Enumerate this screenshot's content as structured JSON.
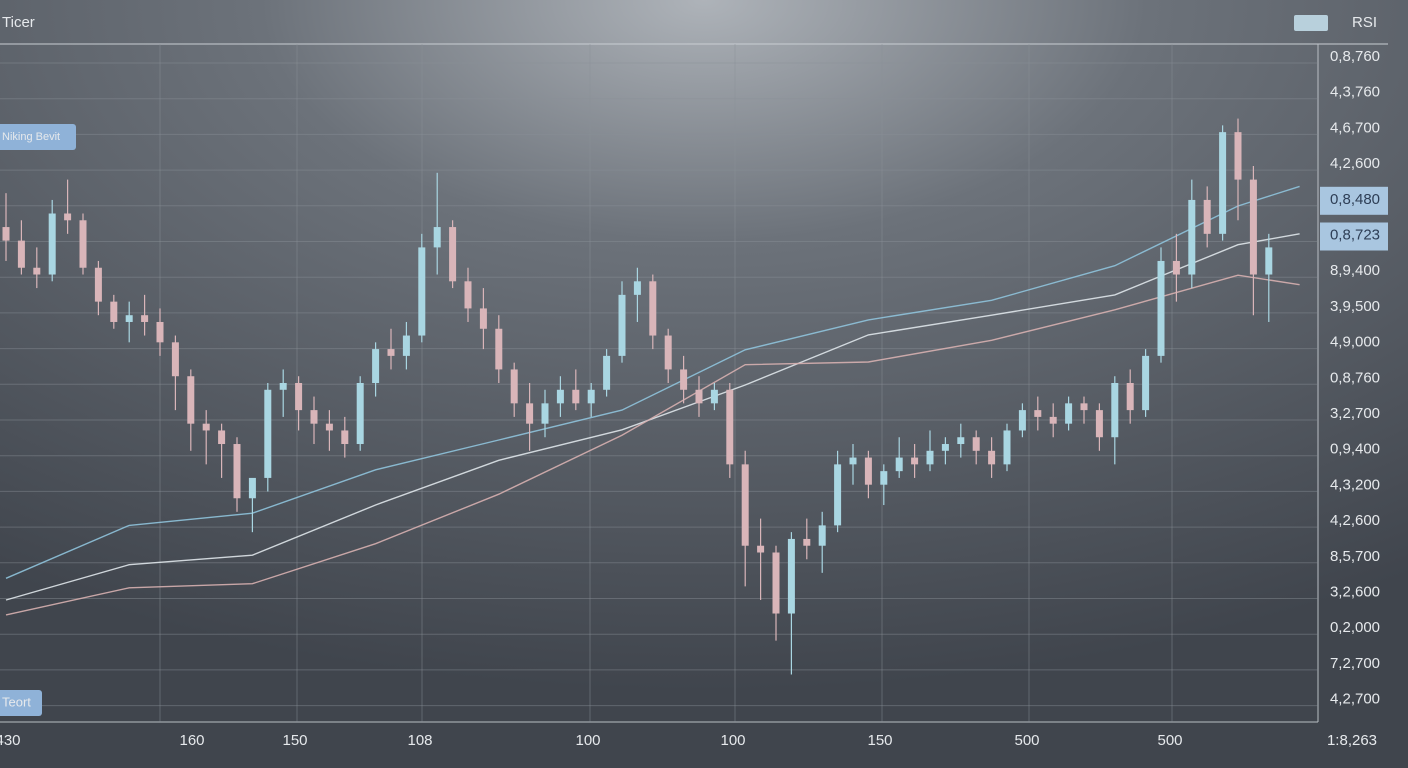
{
  "chart_data": {
    "type": "candlestick",
    "title": "Ticer",
    "legend": "RSI",
    "legend_color": "#b8d0dc",
    "label_top": "Niking Bevit",
    "label_bottom": "Teort",
    "up_color": "#a9d6e2",
    "down_color": "#d9b5b9",
    "ylim": [
      0,
      100
    ],
    "y_axis_labels": [
      "0,8,760",
      "4,3,760",
      "4,6,700",
      "4,2,600",
      "0,8,480",
      "0,8,723",
      "8,9,400",
      "3,9,500",
      "4,9,000",
      "0,8,760",
      "3,2,700",
      "0,9,400",
      "4,3,200",
      "4,2,600",
      "8,5,700",
      "3,2,600",
      "0,2,000",
      "7,2,700",
      "4,2,700"
    ],
    "highlighted_labels": [
      4,
      5
    ],
    "x_axis_labels": [
      "430",
      "160",
      "150",
      "108",
      "100",
      "100",
      "150",
      "500",
      "500",
      "1:8,263"
    ],
    "open": [
      73,
      71,
      67,
      66,
      75,
      74,
      67,
      62,
      59,
      60,
      59,
      56,
      51,
      44,
      43,
      41,
      33,
      36,
      49,
      50,
      46,
      44,
      43,
      41,
      50,
      55,
      54,
      57,
      70,
      73,
      65,
      61,
      58,
      52,
      47,
      44,
      47,
      49,
      47,
      49,
      54,
      63,
      65,
      57,
      52,
      49,
      47,
      49,
      38,
      26,
      25,
      16,
      27,
      26,
      29,
      38,
      39,
      35,
      37,
      39,
      38,
      40,
      41,
      42,
      40,
      38,
      43,
      46,
      45,
      44,
      47,
      46,
      42,
      50,
      46,
      54,
      68,
      66,
      77,
      72,
      87,
      80,
      66
    ],
    "high": [
      78,
      74,
      70,
      77,
      80,
      75,
      68,
      63,
      62,
      63,
      61,
      57,
      52,
      46,
      44,
      42,
      35,
      50,
      52,
      51,
      48,
      46,
      45,
      51,
      56,
      58,
      59,
      72,
      81,
      74,
      67,
      64,
      60,
      53,
      50,
      49,
      51,
      52,
      50,
      55,
      65,
      67,
      66,
      58,
      54,
      51,
      50,
      50,
      40,
      30,
      26,
      28,
      30,
      31,
      40,
      41,
      40,
      38,
      42,
      41,
      43,
      42,
      44,
      43,
      42,
      44,
      47,
      48,
      47,
      48,
      48,
      47,
      51,
      52,
      55,
      70,
      72,
      80,
      79,
      88,
      89,
      82,
      72
    ],
    "low": [
      68,
      66,
      64,
      65,
      72,
      66,
      60,
      58,
      56,
      57,
      54,
      46,
      40,
      38,
      36,
      31,
      28,
      34,
      45,
      43,
      41,
      40,
      39,
      40,
      48,
      52,
      52,
      56,
      66,
      64,
      59,
      55,
      50,
      45,
      40,
      42,
      45,
      46,
      45,
      48,
      53,
      59,
      55,
      50,
      47,
      45,
      46,
      36,
      20,
      18,
      12,
      7,
      24,
      22,
      28,
      35,
      33,
      32,
      36,
      36,
      37,
      38,
      39,
      38,
      36,
      37,
      42,
      43,
      42,
      43,
      44,
      40,
      38,
      44,
      45,
      53,
      62,
      64,
      70,
      71,
      74,
      60,
      59
    ],
    "close": [
      71,
      67,
      66,
      75,
      74,
      67,
      62,
      59,
      60,
      59,
      56,
      51,
      44,
      43,
      41,
      33,
      36,
      49,
      50,
      46,
      44,
      43,
      41,
      50,
      55,
      54,
      57,
      70,
      73,
      65,
      61,
      58,
      52,
      47,
      44,
      47,
      49,
      47,
      49,
      54,
      63,
      65,
      57,
      52,
      49,
      47,
      49,
      38,
      26,
      25,
      16,
      27,
      26,
      29,
      38,
      39,
      35,
      37,
      39,
      38,
      40,
      41,
      42,
      40,
      38,
      43,
      46,
      45,
      44,
      47,
      46,
      42,
      50,
      46,
      54,
      68,
      66,
      77,
      72,
      87,
      80,
      66,
      70
    ],
    "lines_x": [
      0,
      8,
      16,
      24,
      32,
      40,
      48,
      56,
      64,
      72,
      80,
      84
    ],
    "series": [
      {
        "color": "#8fc3dc",
        "values": [
          21.2,
          29,
          30.8,
          37.2,
          41.6,
          46,
          54.9,
          59.3,
          62.2,
          67.3,
          76.1,
          79
        ]
      },
      {
        "color": "#dfe6ea",
        "values": [
          18,
          23.2,
          24.6,
          32,
          38.6,
          43.1,
          49.7,
          57.1,
          60,
          63,
          70.4,
          72
        ]
      },
      {
        "color": "#d7b0b0",
        "values": [
          15.8,
          19.8,
          20.4,
          26.3,
          33.6,
          42.3,
          52.7,
          53.1,
          56.3,
          60.8,
          65.9,
          64.5
        ]
      }
    ]
  }
}
